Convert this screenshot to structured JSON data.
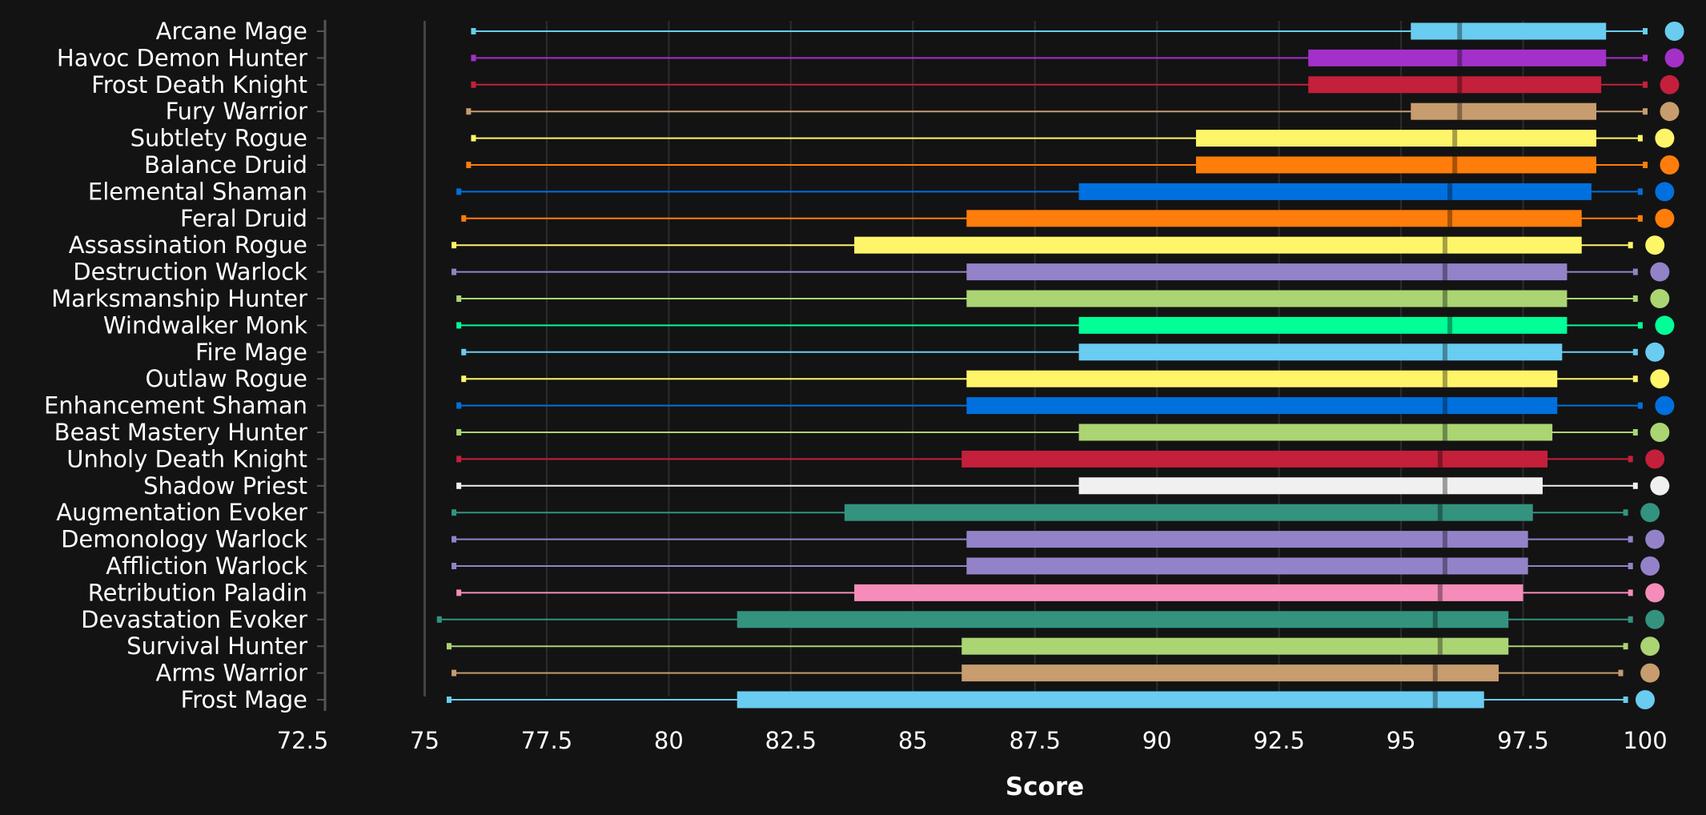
{
  "chart_data": {
    "type": "boxplot",
    "orientation": "horizontal",
    "xlabel": "Score",
    "xlim": [
      72.5,
      100
    ],
    "xticks": [
      "72.5",
      "75",
      "77.5",
      "80",
      "82.5",
      "85",
      "87.5",
      "90",
      "92.5",
      "95",
      "97.5",
      "100"
    ],
    "grid": true,
    "background": "#131313",
    "series": [
      {
        "name": "Arcane Mage",
        "color": "#69CCF0",
        "min": 76.0,
        "q1": 95.2,
        "median": 96.2,
        "q3": 99.2,
        "max": 100.0,
        "top": 100.6
      },
      {
        "name": "Havoc Demon Hunter",
        "color": "#A330C9",
        "min": 76.0,
        "q1": 93.1,
        "median": 96.2,
        "q3": 99.2,
        "max": 100.0,
        "top": 100.6
      },
      {
        "name": "Frost Death Knight",
        "color": "#C41F3B",
        "min": 76.0,
        "q1": 93.1,
        "median": 96.2,
        "q3": 99.1,
        "max": 100.0,
        "top": 100.5
      },
      {
        "name": "Fury Warrior",
        "color": "#C79C6E",
        "min": 75.9,
        "q1": 95.2,
        "median": 96.2,
        "q3": 99.0,
        "max": 100.0,
        "top": 100.5
      },
      {
        "name": "Subtlety Rogue",
        "color": "#FFF569",
        "min": 76.0,
        "q1": 90.8,
        "median": 96.1,
        "q3": 99.0,
        "max": 99.9,
        "top": 100.4
      },
      {
        "name": "Balance Druid",
        "color": "#FF7D0A",
        "min": 75.9,
        "q1": 90.8,
        "median": 96.1,
        "q3": 99.0,
        "max": 100.0,
        "top": 100.5
      },
      {
        "name": "Elemental Shaman",
        "color": "#0070DE",
        "min": 75.7,
        "q1": 88.4,
        "median": 96.0,
        "q3": 98.9,
        "max": 99.9,
        "top": 100.4
      },
      {
        "name": "Feral Druid",
        "color": "#FF7D0A",
        "min": 75.8,
        "q1": 86.1,
        "median": 96.0,
        "q3": 98.7,
        "max": 99.9,
        "top": 100.4
      },
      {
        "name": "Assassination Rogue",
        "color": "#FFF569",
        "min": 75.6,
        "q1": 83.8,
        "median": 95.9,
        "q3": 98.7,
        "max": 99.7,
        "top": 100.2
      },
      {
        "name": "Destruction Warlock",
        "color": "#9482C9",
        "min": 75.6,
        "q1": 86.1,
        "median": 95.9,
        "q3": 98.4,
        "max": 99.8,
        "top": 100.3
      },
      {
        "name": "Marksmanship Hunter",
        "color": "#ABD473",
        "min": 75.7,
        "q1": 86.1,
        "median": 95.9,
        "q3": 98.4,
        "max": 99.8,
        "top": 100.3
      },
      {
        "name": "Windwalker Monk",
        "color": "#00FF96",
        "min": 75.7,
        "q1": 88.4,
        "median": 96.0,
        "q3": 98.4,
        "max": 99.9,
        "top": 100.4
      },
      {
        "name": "Fire Mage",
        "color": "#69CCF0",
        "min": 75.8,
        "q1": 88.4,
        "median": 95.9,
        "q3": 98.3,
        "max": 99.8,
        "top": 100.2
      },
      {
        "name": "Outlaw Rogue",
        "color": "#FFF569",
        "min": 75.8,
        "q1": 86.1,
        "median": 95.9,
        "q3": 98.2,
        "max": 99.8,
        "top": 100.3
      },
      {
        "name": "Enhancement Shaman",
        "color": "#0070DE",
        "min": 75.7,
        "q1": 86.1,
        "median": 95.9,
        "q3": 98.2,
        "max": 99.9,
        "top": 100.4
      },
      {
        "name": "Beast Mastery Hunter",
        "color": "#ABD473",
        "min": 75.7,
        "q1": 88.4,
        "median": 95.9,
        "q3": 98.1,
        "max": 99.8,
        "top": 100.3
      },
      {
        "name": "Unholy Death Knight",
        "color": "#C41F3B",
        "min": 75.7,
        "q1": 86.0,
        "median": 95.8,
        "q3": 98.0,
        "max": 99.7,
        "top": 100.2
      },
      {
        "name": "Shadow Priest",
        "color": "#F0F0F0",
        "min": 75.7,
        "q1": 88.4,
        "median": 95.9,
        "q3": 97.9,
        "max": 99.8,
        "top": 100.3
      },
      {
        "name": "Augmentation Evoker",
        "color": "#33937F",
        "min": 75.6,
        "q1": 83.6,
        "median": 95.8,
        "q3": 97.7,
        "max": 99.6,
        "top": 100.1
      },
      {
        "name": "Demonology Warlock",
        "color": "#9482C9",
        "min": 75.6,
        "q1": 86.1,
        "median": 95.9,
        "q3": 97.6,
        "max": 99.7,
        "top": 100.2
      },
      {
        "name": "Affliction Warlock",
        "color": "#9482C9",
        "min": 75.6,
        "q1": 86.1,
        "median": 95.9,
        "q3": 97.6,
        "max": 99.7,
        "top": 100.1
      },
      {
        "name": "Retribution Paladin",
        "color": "#F58CBA",
        "min": 75.7,
        "q1": 83.8,
        "median": 95.8,
        "q3": 97.5,
        "max": 99.7,
        "top": 100.2
      },
      {
        "name": "Devastation Evoker",
        "color": "#33937F",
        "min": 75.3,
        "q1": 81.4,
        "median": 95.7,
        "q3": 97.2,
        "max": 99.7,
        "top": 100.2
      },
      {
        "name": "Survival Hunter",
        "color": "#ABD473",
        "min": 75.5,
        "q1": 86.0,
        "median": 95.8,
        "q3": 97.2,
        "max": 99.6,
        "top": 100.1
      },
      {
        "name": "Arms Warrior",
        "color": "#C79C6E",
        "min": 75.6,
        "q1": 86.0,
        "median": 95.7,
        "q3": 97.0,
        "max": 99.5,
        "top": 100.1
      },
      {
        "name": "Frost Mage",
        "color": "#69CCF0",
        "min": 75.5,
        "q1": 81.4,
        "median": 95.7,
        "q3": 96.7,
        "max": 99.6,
        "top": 100.0
      }
    ]
  }
}
